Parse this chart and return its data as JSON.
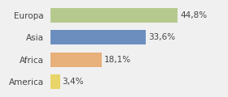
{
  "categories": [
    "Europa",
    "Asia",
    "Africa",
    "America"
  ],
  "values": [
    44.8,
    33.6,
    18.1,
    3.4
  ],
  "labels": [
    "44,8%",
    "33,6%",
    "18,1%",
    "3,4%"
  ],
  "bar_colors": [
    "#b5c98e",
    "#6b8ebf",
    "#e8b07a",
    "#e8d468"
  ],
  "background_color": "#f0f0f0",
  "xlim": [
    0,
    60
  ],
  "bar_height": 0.65,
  "label_fontsize": 7.5,
  "category_fontsize": 7.5
}
